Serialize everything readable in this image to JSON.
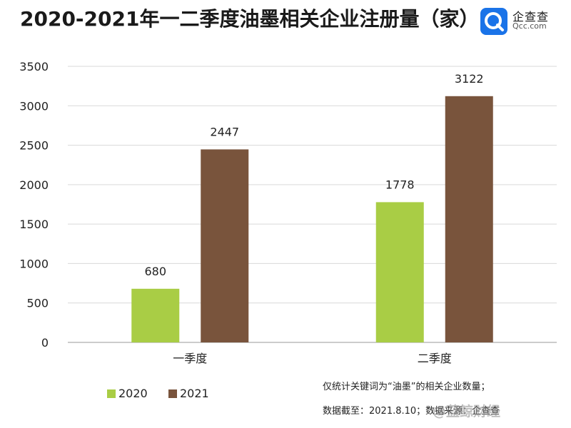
{
  "title": "2020-2021年一二季度油墨相关企业注册量（家）",
  "logo": {
    "name": "企查查",
    "sub": "Qcc.com"
  },
  "chart_data": {
    "type": "bar",
    "title": "2020-2021年一二季度油墨相关企业注册量（家）",
    "categories": [
      "一季度",
      "二季度"
    ],
    "series": [
      {
        "name": "2020",
        "values": [
          680,
          1778
        ],
        "color": "#a9cd45"
      },
      {
        "name": "2021",
        "values": [
          2447,
          3122
        ],
        "color": "#79543c"
      }
    ],
    "ylim": [
      0,
      3500
    ],
    "yticks": [
      0,
      500,
      1000,
      1500,
      2000,
      2500,
      3000,
      3500
    ],
    "grid": true,
    "legend": "bottom-left"
  },
  "notes": [
    "仅统计关键词为“油墨”的相关企业数量；",
    "数据截至：2021.8.10；数据来源：企查查"
  ],
  "watermark": "@蓝鲸财经"
}
